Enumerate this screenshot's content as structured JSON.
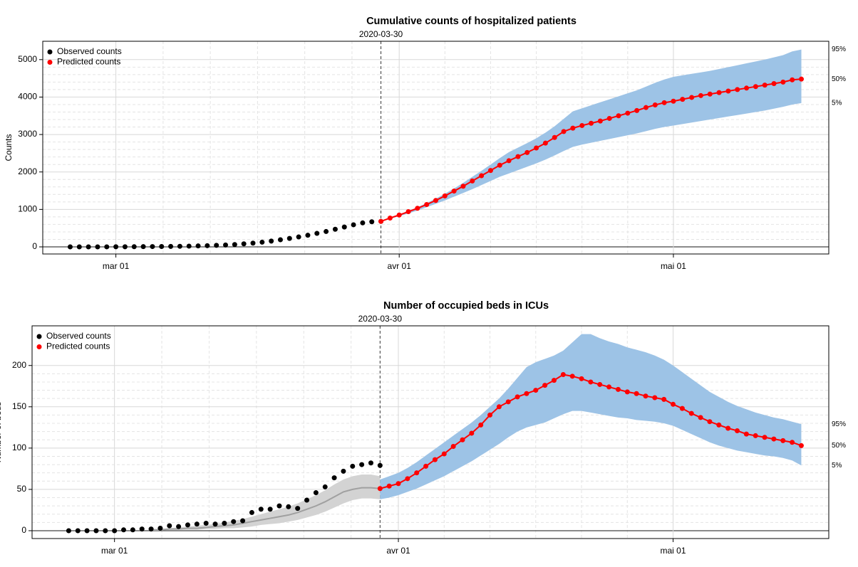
{
  "chart_data": [
    {
      "type": "line",
      "title": "Cumulative counts of hospitalized patients",
      "vline": "2020-03-30",
      "ylabel": "Counts",
      "xlim": [
        "2020-02-22",
        "2020-05-18"
      ],
      "ylim": [
        -190,
        5490
      ],
      "xticks": [
        {
          "value": "2020-03-01",
          "label": "mar 01"
        },
        {
          "value": "2020-04-01",
          "label": "avr 01"
        },
        {
          "value": "2020-05-01",
          "label": "mai 01"
        }
      ],
      "yticks": [
        0,
        1000,
        2000,
        3000,
        4000,
        5000
      ],
      "grid": true,
      "legend": "top-left",
      "series": [
        {
          "name": "Observed counts",
          "color": "#000000",
          "markers": true,
          "line": false,
          "x": [
            "2020-02-25",
            "2020-02-26",
            "2020-02-27",
            "2020-02-28",
            "2020-02-29",
            "2020-03-01",
            "2020-03-02",
            "2020-03-03",
            "2020-03-04",
            "2020-03-05",
            "2020-03-06",
            "2020-03-07",
            "2020-03-08",
            "2020-03-09",
            "2020-03-10",
            "2020-03-11",
            "2020-03-12",
            "2020-03-13",
            "2020-03-14",
            "2020-03-15",
            "2020-03-16",
            "2020-03-17",
            "2020-03-18",
            "2020-03-19",
            "2020-03-20",
            "2020-03-21",
            "2020-03-22",
            "2020-03-23",
            "2020-03-24",
            "2020-03-25",
            "2020-03-26",
            "2020-03-27",
            "2020-03-28",
            "2020-03-29",
            "2020-03-30"
          ],
          "values": [
            0,
            0,
            0,
            0,
            1,
            2,
            3,
            4,
            6,
            8,
            10,
            12,
            15,
            20,
            25,
            32,
            40,
            50,
            62,
            80,
            100,
            125,
            155,
            190,
            225,
            265,
            310,
            360,
            410,
            470,
            530,
            590,
            640,
            670,
            680
          ]
        },
        {
          "name": "Predicted counts",
          "color": "#ff0000",
          "markers": true,
          "line": true,
          "band_color": "#9dc3e6",
          "labels": [
            "95%",
            "50%",
            "5%"
          ],
          "label_colors": [
            "#4a8fd4",
            "#ff0000",
            "#4a8fd4"
          ],
          "x": [
            "2020-03-30",
            "2020-03-31",
            "2020-04-01",
            "2020-04-02",
            "2020-04-03",
            "2020-04-04",
            "2020-04-05",
            "2020-04-06",
            "2020-04-07",
            "2020-04-08",
            "2020-04-09",
            "2020-04-10",
            "2020-04-11",
            "2020-04-12",
            "2020-04-13",
            "2020-04-14",
            "2020-04-15",
            "2020-04-16",
            "2020-04-17",
            "2020-04-18",
            "2020-04-19",
            "2020-04-20",
            "2020-04-21",
            "2020-04-22",
            "2020-04-23",
            "2020-04-24",
            "2020-04-25",
            "2020-04-26",
            "2020-04-27",
            "2020-04-28",
            "2020-04-29",
            "2020-04-30",
            "2020-05-01",
            "2020-05-02",
            "2020-05-03",
            "2020-05-04",
            "2020-05-05",
            "2020-05-06",
            "2020-05-07",
            "2020-05-08",
            "2020-05-09",
            "2020-05-10",
            "2020-05-11",
            "2020-05-12",
            "2020-05-13",
            "2020-05-14",
            "2020-05-15"
          ],
          "values": [
            680,
            770,
            850,
            940,
            1030,
            1130,
            1240,
            1360,
            1490,
            1620,
            1760,
            1900,
            2040,
            2180,
            2300,
            2410,
            2520,
            2640,
            2770,
            2920,
            3080,
            3170,
            3240,
            3300,
            3360,
            3430,
            3500,
            3570,
            3640,
            3720,
            3790,
            3850,
            3890,
            3940,
            3990,
            4040,
            4080,
            4120,
            4160,
            4200,
            4240,
            4280,
            4320,
            4360,
            4400,
            4460,
            4480
          ],
          "upper": [
            690,
            780,
            870,
            960,
            1060,
            1170,
            1290,
            1420,
            1560,
            1710,
            1870,
            2030,
            2200,
            2370,
            2530,
            2650,
            2770,
            2900,
            3050,
            3220,
            3420,
            3620,
            3700,
            3780,
            3860,
            3940,
            4020,
            4100,
            4180,
            4280,
            4380,
            4470,
            4540,
            4580,
            4620,
            4660,
            4700,
            4750,
            4800,
            4850,
            4900,
            4950,
            5000,
            5060,
            5120,
            5220,
            5270
          ],
          "lower": [
            670,
            750,
            820,
            890,
            970,
            1060,
            1150,
            1240,
            1340,
            1440,
            1540,
            1650,
            1760,
            1870,
            1960,
            2050,
            2140,
            2230,
            2330,
            2440,
            2560,
            2670,
            2730,
            2780,
            2830,
            2880,
            2930,
            2980,
            3030,
            3090,
            3150,
            3200,
            3240,
            3280,
            3320,
            3360,
            3400,
            3440,
            3480,
            3520,
            3560,
            3600,
            3640,
            3690,
            3740,
            3800,
            3840
          ]
        }
      ]
    },
    {
      "type": "line",
      "title": "Number of occupied beds in ICUs",
      "vline": "2020-03-30",
      "ylabel": "Number of beds",
      "xlim": [
        "2020-02-21",
        "2020-05-18"
      ],
      "ylim": [
        -9.5,
        248
      ],
      "xticks": [
        {
          "value": "2020-03-01",
          "label": "mar 01"
        },
        {
          "value": "2020-04-01",
          "label": "avr 01"
        },
        {
          "value": "2020-05-01",
          "label": "mai 01"
        }
      ],
      "yticks": [
        0,
        50,
        100,
        150,
        200
      ],
      "grid": true,
      "legend": "top-left",
      "series": [
        {
          "color": "#a0a0a0",
          "markers": false,
          "line": true,
          "band_color": "#d3d3d3",
          "x": [
            "2020-03-05",
            "2020-03-06",
            "2020-03-07",
            "2020-03-08",
            "2020-03-09",
            "2020-03-10",
            "2020-03-11",
            "2020-03-12",
            "2020-03-13",
            "2020-03-14",
            "2020-03-15",
            "2020-03-16",
            "2020-03-17",
            "2020-03-18",
            "2020-03-19",
            "2020-03-20",
            "2020-03-21",
            "2020-03-22",
            "2020-03-23",
            "2020-03-24",
            "2020-03-25",
            "2020-03-26",
            "2020-03-27",
            "2020-03-28",
            "2020-03-29",
            "2020-03-30"
          ],
          "values": [
            1,
            1,
            2,
            2,
            3,
            3,
            4,
            5,
            6,
            7,
            9,
            11,
            13,
            15,
            17,
            19,
            22,
            26,
            30,
            35,
            41,
            47,
            50,
            52,
            52,
            51
          ],
          "upper": [
            2,
            2,
            3,
            4,
            5,
            6,
            7,
            8,
            10,
            12,
            14,
            17,
            20,
            23,
            26,
            29,
            33,
            38,
            43,
            49,
            56,
            62,
            66,
            68,
            68,
            66
          ],
          "lower": [
            0,
            0,
            1,
            1,
            1,
            1,
            2,
            2,
            3,
            3,
            4,
            5,
            7,
            8,
            9,
            11,
            13,
            16,
            19,
            23,
            28,
            33,
            37,
            39,
            39,
            38
          ]
        },
        {
          "name": "Observed counts",
          "color": "#000000",
          "markers": true,
          "line": false,
          "x": [
            "2020-02-25",
            "2020-02-26",
            "2020-02-27",
            "2020-02-28",
            "2020-02-29",
            "2020-03-01",
            "2020-03-02",
            "2020-03-03",
            "2020-03-04",
            "2020-03-05",
            "2020-03-06",
            "2020-03-07",
            "2020-03-08",
            "2020-03-09",
            "2020-03-10",
            "2020-03-11",
            "2020-03-12",
            "2020-03-13",
            "2020-03-14",
            "2020-03-15",
            "2020-03-16",
            "2020-03-17",
            "2020-03-18",
            "2020-03-19",
            "2020-03-20",
            "2020-03-21",
            "2020-03-22",
            "2020-03-23",
            "2020-03-24",
            "2020-03-25",
            "2020-03-26",
            "2020-03-27",
            "2020-03-28",
            "2020-03-29",
            "2020-03-30"
          ],
          "values": [
            0,
            0,
            0,
            0,
            0,
            0,
            1,
            1,
            2,
            2,
            3,
            6,
            5,
            7,
            8,
            9,
            8,
            9,
            11,
            12,
            22,
            26,
            26,
            30,
            29,
            27,
            37,
            46,
            53,
            64,
            72,
            78,
            80,
            82,
            79
          ]
        },
        {
          "name": "Predicted counts",
          "color": "#ff0000",
          "markers": true,
          "line": true,
          "band_color": "#9dc3e6",
          "labels": [
            "95%",
            "50%",
            "5%"
          ],
          "label_colors": [
            "#4a8fd4",
            "#ff0000",
            "#4a8fd4"
          ],
          "x": [
            "2020-03-30",
            "2020-03-31",
            "2020-04-01",
            "2020-04-02",
            "2020-04-03",
            "2020-04-04",
            "2020-04-05",
            "2020-04-06",
            "2020-04-07",
            "2020-04-08",
            "2020-04-09",
            "2020-04-10",
            "2020-04-11",
            "2020-04-12",
            "2020-04-13",
            "2020-04-14",
            "2020-04-15",
            "2020-04-16",
            "2020-04-17",
            "2020-04-18",
            "2020-04-19",
            "2020-04-20",
            "2020-04-21",
            "2020-04-22",
            "2020-04-23",
            "2020-04-24",
            "2020-04-25",
            "2020-04-26",
            "2020-04-27",
            "2020-04-28",
            "2020-04-29",
            "2020-04-30",
            "2020-05-01",
            "2020-05-02",
            "2020-05-03",
            "2020-05-04",
            "2020-05-05",
            "2020-05-06",
            "2020-05-07",
            "2020-05-08",
            "2020-05-09",
            "2020-05-10",
            "2020-05-11",
            "2020-05-12",
            "2020-05-13",
            "2020-05-14",
            "2020-05-15"
          ],
          "values": [
            51,
            54,
            57,
            63,
            70,
            78,
            86,
            93,
            102,
            110,
            118,
            128,
            140,
            150,
            156,
            162,
            166,
            170,
            176,
            182,
            189,
            187,
            184,
            180,
            177,
            174,
            171,
            168,
            166,
            163,
            161,
            159,
            153,
            148,
            142,
            137,
            132,
            128,
            124,
            121,
            117,
            115,
            113,
            111,
            109,
            107,
            103
          ],
          "upper": [
            62,
            66,
            70,
            76,
            83,
            91,
            99,
            107,
            115,
            123,
            131,
            140,
            150,
            160,
            172,
            185,
            198,
            204,
            208,
            212,
            218,
            228,
            238,
            238,
            233,
            229,
            226,
            222,
            219,
            216,
            212,
            207,
            200,
            192,
            184,
            176,
            168,
            162,
            156,
            151,
            147,
            143,
            140,
            137,
            135,
            132,
            129
          ],
          "lower": [
            38,
            40,
            43,
            47,
            51,
            56,
            61,
            66,
            72,
            78,
            84,
            91,
            98,
            105,
            113,
            120,
            125,
            128,
            131,
            136,
            141,
            145,
            145,
            143,
            141,
            139,
            137,
            136,
            134,
            133,
            132,
            130,
            127,
            122,
            117,
            112,
            107,
            103,
            100,
            97,
            95,
            93,
            91,
            90,
            88,
            85,
            79
          ]
        }
      ]
    }
  ]
}
